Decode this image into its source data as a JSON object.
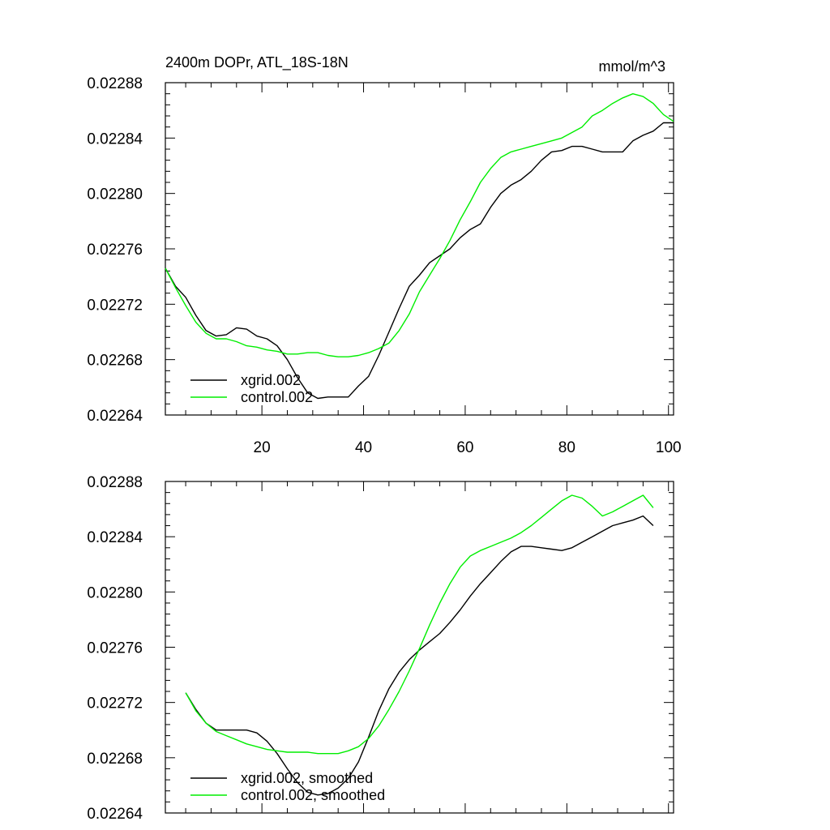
{
  "chart_data": [
    {
      "type": "line",
      "title": "2400m DOPr, ATL_18S-18N",
      "units": "mmol/m^3",
      "xlim": [
        1,
        101
      ],
      "ylim": [
        0.02264,
        0.02288
      ],
      "x_ticks": [
        20,
        40,
        60,
        80,
        100
      ],
      "x_tick_labels": [
        "20",
        "40",
        "60",
        "80",
        "100"
      ],
      "y_ticks": [
        0.02264,
        0.02268,
        0.02272,
        0.02276,
        0.0228,
        0.02284,
        0.02288
      ],
      "y_tick_labels": [
        "0.02264",
        "0.02268",
        "0.02272",
        "0.02276",
        "0.02280",
        "0.02284",
        "0.02288"
      ],
      "legend_position": "bottom-left",
      "series": [
        {
          "name": "xgrid.002",
          "color": "#000000",
          "x": [
            1,
            3,
            5,
            7,
            9,
            11,
            13,
            15,
            17,
            19,
            21,
            23,
            25,
            27,
            29,
            31,
            33,
            35,
            37,
            39,
            41,
            43,
            45,
            47,
            49,
            51,
            53,
            55,
            57,
            59,
            61,
            63,
            65,
            67,
            69,
            71,
            73,
            75,
            77,
            79,
            81,
            83,
            85,
            87,
            89,
            91,
            93,
            95,
            97,
            99,
            101
          ],
          "values": [
            0.022746,
            0.022733,
            0.022725,
            0.022712,
            0.022701,
            0.022697,
            0.022698,
            0.022703,
            0.022702,
            0.022697,
            0.022695,
            0.02269,
            0.02268,
            0.022667,
            0.022656,
            0.022652,
            0.022653,
            0.022653,
            0.022653,
            0.022661,
            0.022668,
            0.022683,
            0.0227,
            0.022717,
            0.022733,
            0.022741,
            0.02275,
            0.022755,
            0.02276,
            0.022768,
            0.022774,
            0.022778,
            0.02279,
            0.0228,
            0.022806,
            0.02281,
            0.022816,
            0.022824,
            0.02283,
            0.022831,
            0.022834,
            0.022834,
            0.022832,
            0.02283,
            0.02283,
            0.02283,
            0.022838,
            0.022842,
            0.022845,
            0.022851,
            0.022851
          ]
        },
        {
          "name": "control.002",
          "color": "#00ee00",
          "x": [
            1,
            3,
            5,
            7,
            9,
            11,
            13,
            15,
            17,
            19,
            21,
            23,
            25,
            27,
            29,
            31,
            33,
            35,
            37,
            39,
            41,
            43,
            45,
            47,
            49,
            51,
            53,
            55,
            57,
            59,
            61,
            63,
            65,
            67,
            69,
            71,
            73,
            75,
            77,
            79,
            81,
            83,
            85,
            87,
            89,
            91,
            93,
            95,
            97,
            99,
            101
          ],
          "values": [
            0.022746,
            0.022732,
            0.022719,
            0.022707,
            0.022699,
            0.022695,
            0.022695,
            0.022693,
            0.02269,
            0.022689,
            0.022687,
            0.022686,
            0.022684,
            0.022684,
            0.022685,
            0.022685,
            0.022683,
            0.022682,
            0.022682,
            0.022683,
            0.022685,
            0.022688,
            0.022692,
            0.022701,
            0.022713,
            0.022729,
            0.022741,
            0.022753,
            0.022766,
            0.022781,
            0.022794,
            0.022808,
            0.022818,
            0.022826,
            0.02283,
            0.022832,
            0.022834,
            0.022836,
            0.022838,
            0.02284,
            0.022844,
            0.022848,
            0.022856,
            0.02286,
            0.022865,
            0.022869,
            0.022872,
            0.02287,
            0.022865,
            0.022857,
            0.022852
          ]
        }
      ]
    },
    {
      "type": "line",
      "title": "",
      "units": "",
      "xlim": [
        1,
        101
      ],
      "ylim": [
        0.02264,
        0.02288
      ],
      "x_ticks": [
        20,
        40,
        60,
        80,
        100
      ],
      "x_tick_labels": [],
      "y_ticks": [
        0.02264,
        0.02268,
        0.02272,
        0.02276,
        0.0228,
        0.02284,
        0.02288
      ],
      "y_tick_labels": [
        "0.02264",
        "0.02268",
        "0.02272",
        "0.02276",
        "0.02280",
        "0.02284",
        "0.02288"
      ],
      "legend_position": "bottom-left",
      "series": [
        {
          "name": "xgrid.002, smoothed",
          "color": "#000000",
          "x": [
            5,
            7,
            9,
            11,
            13,
            15,
            17,
            19,
            21,
            23,
            25,
            27,
            29,
            31,
            33,
            35,
            37,
            39,
            41,
            43,
            45,
            47,
            49,
            51,
            53,
            55,
            57,
            59,
            61,
            63,
            65,
            67,
            69,
            71,
            73,
            75,
            77,
            79,
            81,
            83,
            85,
            87,
            89,
            91,
            93,
            95,
            97
          ],
          "values": [
            0.022727,
            0.022715,
            0.022705,
            0.0227,
            0.0227,
            0.0227,
            0.0227,
            0.022698,
            0.022692,
            0.022683,
            0.022672,
            0.022662,
            0.022655,
            0.022653,
            0.022654,
            0.022658,
            0.022665,
            0.022677,
            0.022695,
            0.022714,
            0.02273,
            0.022742,
            0.022751,
            0.022758,
            0.022764,
            0.02277,
            0.022778,
            0.022787,
            0.022797,
            0.022806,
            0.022814,
            0.022822,
            0.022829,
            0.022833,
            0.022833,
            0.022832,
            0.022831,
            0.02283,
            0.022832,
            0.022836,
            0.02284,
            0.022844,
            0.022848,
            0.02285,
            0.022852,
            0.022855,
            0.022848
          ]
        },
        {
          "name": "control.002, smoothed",
          "color": "#00ee00",
          "x": [
            5,
            7,
            9,
            11,
            13,
            15,
            17,
            19,
            21,
            23,
            25,
            27,
            29,
            31,
            33,
            35,
            37,
            39,
            41,
            43,
            45,
            47,
            49,
            51,
            53,
            55,
            57,
            59,
            61,
            63,
            65,
            67,
            69,
            71,
            73,
            75,
            77,
            79,
            81,
            83,
            85,
            87,
            89,
            91,
            93,
            95,
            97
          ],
          "values": [
            0.022727,
            0.022714,
            0.022705,
            0.022699,
            0.022696,
            0.022693,
            0.02269,
            0.022688,
            0.022686,
            0.022685,
            0.022684,
            0.022684,
            0.022684,
            0.022683,
            0.022683,
            0.022683,
            0.022685,
            0.022688,
            0.022694,
            0.022703,
            0.022715,
            0.022728,
            0.022743,
            0.022759,
            0.022776,
            0.022792,
            0.022806,
            0.022818,
            0.022826,
            0.02283,
            0.022833,
            0.022836,
            0.022839,
            0.022843,
            0.022848,
            0.022854,
            0.02286,
            0.022866,
            0.02287,
            0.022868,
            0.022862,
            0.022855,
            0.022858,
            0.022862,
            0.022866,
            0.02287,
            0.022861
          ]
        }
      ]
    }
  ]
}
